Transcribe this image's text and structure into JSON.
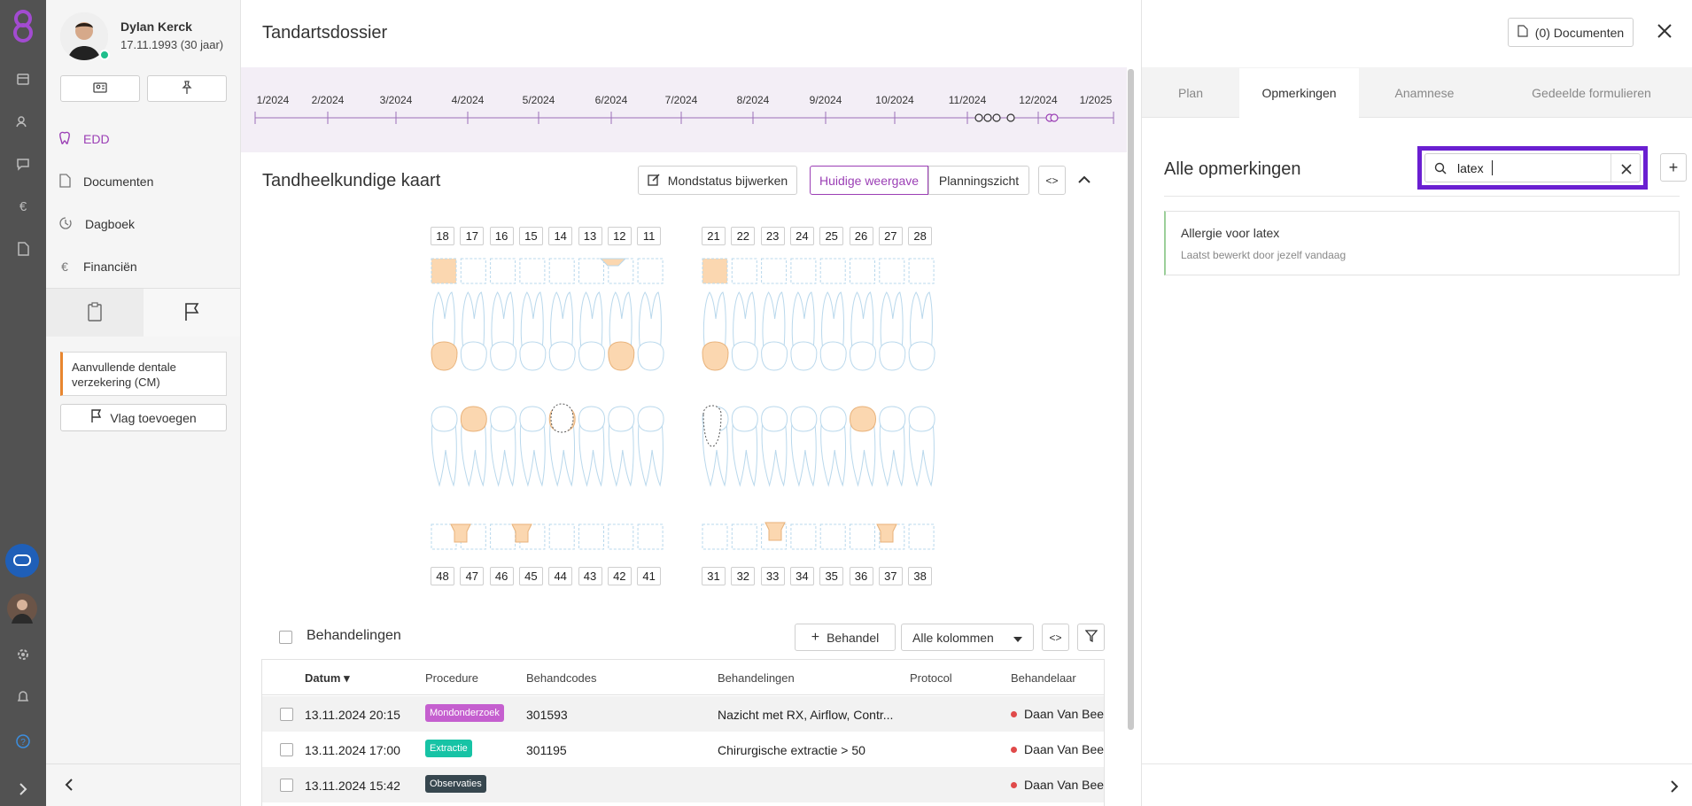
{
  "patient": {
    "name": "Dylan Kerck",
    "dob": "17.11.1993 (30 jaar)"
  },
  "sidebar": {
    "nav": [
      {
        "label": "EDD",
        "icon": "tooth-icon"
      },
      {
        "label": "Documenten",
        "icon": "document-icon"
      },
      {
        "label": "Dagboek",
        "icon": "history-icon"
      },
      {
        "label": "Financiën",
        "icon": "euro-icon"
      }
    ],
    "flag_item": "Aanvullende dentale verzekering (CM)",
    "add_flag": "Vlag toevoegen"
  },
  "header": {
    "title": "Tandartsdossier",
    "documents": "(0) Documenten"
  },
  "timeline": {
    "months": [
      "1/2024",
      "2/2024",
      "3/2024",
      "4/2024",
      "5/2024",
      "6/2024",
      "7/2024",
      "8/2024",
      "9/2024",
      "10/2024",
      "11/2024",
      "12/2024",
      "1/2025"
    ]
  },
  "chart": {
    "title": "Tandheelkundige kaart",
    "btn_status": "Mondstatus bijwerken",
    "btn_current": "Huidige weergave",
    "btn_plan": "Planningszicht",
    "upper_right": [
      "18",
      "17",
      "16",
      "15",
      "14",
      "13",
      "12",
      "11"
    ],
    "upper_left": [
      "21",
      "22",
      "23",
      "24",
      "25",
      "26",
      "27",
      "28"
    ],
    "lower_right": [
      "48",
      "47",
      "46",
      "45",
      "44",
      "43",
      "42",
      "41"
    ],
    "lower_left": [
      "31",
      "32",
      "33",
      "34",
      "35",
      "36",
      "37",
      "38"
    ]
  },
  "treatments": {
    "title": "Behandelingen",
    "add": "Behandel",
    "columns_select": "Alle kolommen",
    "headers": [
      "Datum",
      "Procedure",
      "Behandcodes",
      "Behandelingen",
      "Protocol",
      "Behandelaar"
    ],
    "rows": [
      {
        "date": "13.11.2024 20:15",
        "procedure": "Mondonderzoek",
        "proc_color": "#c55fcf",
        "codes": "301593",
        "treatment": "Nazicht met RX, Airflow, Contr...",
        "protocol": "",
        "practitioner": "Daan Van Beek"
      },
      {
        "date": "13.11.2024 17:00",
        "procedure": "Extractie",
        "proc_color": "#17c3a5",
        "codes": "301195",
        "treatment": "Chirurgische extractie > 50",
        "protocol": "",
        "practitioner": "Daan Van Beek"
      },
      {
        "date": "13.11.2024 15:42",
        "procedure": "Observaties",
        "proc_color": "#37474f",
        "codes": "",
        "treatment": "",
        "protocol": "",
        "practitioner": "Daan Van Beek"
      }
    ]
  },
  "right": {
    "tabs": [
      "Plan",
      "Opmerkingen",
      "Anamnese",
      "Gedeelde formulieren"
    ],
    "title": "Alle opmerkingen",
    "search_value": "latex",
    "note_title": "Allergie voor latex",
    "note_meta": "Laatst bewerkt door jezelf vandaag"
  },
  "colors": {
    "accent": "#9b3fb5",
    "highlight": "#6a1fd1",
    "tooth_fill": "#fbd7b0",
    "tooth_outline": "#b9d8ec",
    "flag_orange": "#e8862f"
  }
}
